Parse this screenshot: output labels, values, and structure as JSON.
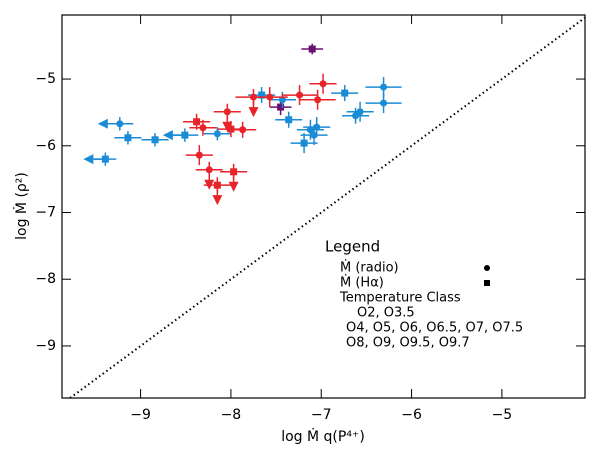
{
  "chart_data": {
    "type": "scatter",
    "x_label": "log Ṁ q(P⁴⁺)",
    "y_label": "log Ṁ (ρ²)",
    "xlim": [
      -9.87,
      -4.08
    ],
    "ylim": [
      -9.78,
      -4.04
    ],
    "xticks": [
      {
        "value": -9,
        "label": "−9"
      },
      {
        "value": -8,
        "label": "−8"
      },
      {
        "value": -7,
        "label": "−7"
      },
      {
        "value": -6,
        "label": "−6"
      },
      {
        "value": -5,
        "label": "−5"
      }
    ],
    "yticks": [
      {
        "value": -9,
        "label": "−9"
      },
      {
        "value": -8,
        "label": "−8"
      },
      {
        "value": -7,
        "label": "−7"
      },
      {
        "value": -6,
        "label": "−6"
      },
      {
        "value": -5,
        "label": "−5"
      }
    ],
    "identity_line": true,
    "legend_title": "Legend",
    "marker_legend": [
      {
        "label": "Ṁ (radio)",
        "marker": "circle"
      },
      {
        "label": "Ṁ (Hα)",
        "marker": "square"
      }
    ],
    "legend_subtitle": "Temperature Class",
    "series": [
      {
        "name": "O2, O3.5",
        "color": "#6a0f70",
        "x": [
          -7.1,
          -7.45
        ],
        "y": [
          -4.55,
          -5.42
        ],
        "xerr": [
          0.12,
          0.12
        ],
        "yerr": [
          0.08,
          0.12
        ],
        "markers": [
          "square",
          "square"
        ],
        "limits": [
          null,
          null
        ]
      },
      {
        "name": "O4, O5, O6, O6.5, O7, O7.5",
        "color": "#1a8cd6",
        "x": [
          -9.23,
          -9.14,
          -9.39,
          -8.84,
          -8.51,
          -8.15,
          -7.66,
          -7.43,
          -7.36,
          -7.12,
          -7.05,
          -7.19,
          -7.08,
          -6.74,
          -6.62,
          -6.57,
          -6.31,
          -6.31
        ],
        "y": [
          -5.67,
          -5.88,
          -6.2,
          -5.91,
          -5.84,
          -5.82,
          -5.24,
          -5.31,
          -5.61,
          -5.76,
          -5.72,
          -5.96,
          -5.84,
          -5.21,
          -5.55,
          -5.49,
          -5.12,
          -5.36
        ],
        "xerr": [
          0.15,
          0.15,
          0.12,
          0.15,
          0.15,
          0.15,
          0.15,
          0.15,
          0.15,
          0.15,
          0.15,
          0.15,
          0.15,
          0.15,
          0.15,
          0.15,
          0.2,
          0.2
        ],
        "yerr": [
          0.1,
          0.1,
          0.1,
          0.1,
          0.1,
          0.1,
          0.12,
          0.12,
          0.12,
          0.15,
          0.15,
          0.15,
          0.15,
          0.12,
          0.12,
          0.15,
          0.15,
          0.15
        ],
        "markers": [
          "circle",
          "square",
          "square",
          "square",
          "square",
          "circle",
          "square",
          "circle",
          "square",
          "circle",
          "circle",
          "square",
          "circle",
          "square",
          "circle",
          "circle",
          "circle",
          "circle"
        ],
        "limits": [
          "left",
          null,
          "left",
          null,
          "left",
          null,
          null,
          null,
          null,
          null,
          null,
          null,
          null,
          null,
          null,
          null,
          null,
          null
        ]
      },
      {
        "name": "O8, O9, O9.5, O9.7",
        "color": "#e8232a",
        "x": [
          -8.38,
          -8.31,
          -8.35,
          -8.24,
          -8.15,
          -7.97,
          -8.04,
          -8.0,
          -7.87,
          -7.75,
          -7.57,
          -7.24,
          -6.98,
          -7.04
        ],
        "y": [
          -5.64,
          -5.73,
          -6.14,
          -6.36,
          -6.59,
          -6.39,
          -5.49,
          -5.75,
          -5.76,
          -5.27,
          -5.27,
          -5.24,
          -5.07,
          -5.31
        ],
        "xerr": [
          0.15,
          0.15,
          0.15,
          0.15,
          0.15,
          0.15,
          0.15,
          0.15,
          0.15,
          0.2,
          0.2,
          0.2,
          0.15,
          0.2
        ],
        "yerr": [
          0.12,
          0.12,
          0.15,
          0.12,
          0.12,
          0.12,
          0.12,
          0.12,
          0.12,
          0.12,
          0.15,
          0.15,
          0.15,
          0.15
        ],
        "markers": [
          "square",
          "circle",
          "circle",
          "circle",
          "square",
          "square",
          "circle",
          "square",
          "circle",
          "circle",
          "circle",
          "circle",
          "circle",
          "circle"
        ],
        "limits": [
          null,
          null,
          null,
          "down",
          "down",
          "down",
          "down",
          null,
          null,
          "down",
          null,
          null,
          null,
          null
        ]
      }
    ]
  }
}
